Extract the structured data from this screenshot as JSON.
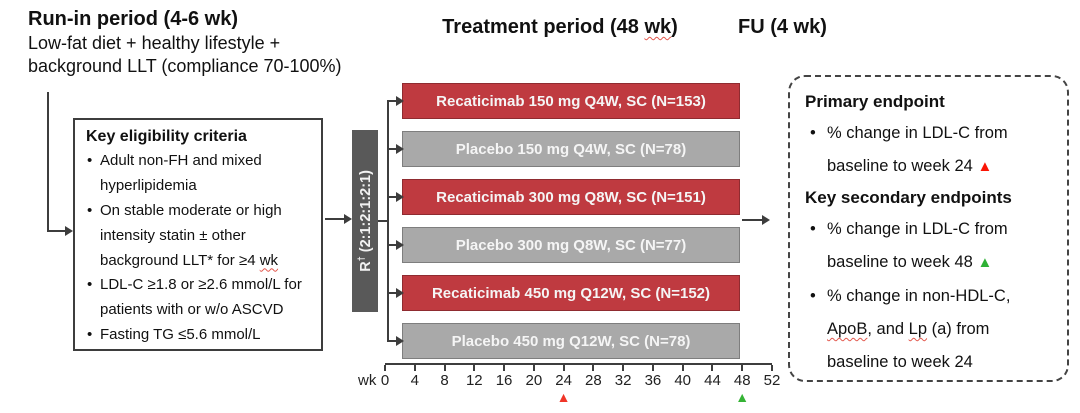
{
  "colors": {
    "treatment_bar": "#bf3a40",
    "placebo_bar": "#a9a9a9",
    "randomization_bar": "#595959",
    "marker_red": "#f03528",
    "marker_green": "#35b335",
    "connector": "#3d3d3d"
  },
  "headers": {
    "run_in_title": "Run-in period (4-6 wk)",
    "run_in_line1": "Low-fat diet + healthy lifestyle +",
    "run_in_line2": "background LLT (compliance 70-100%)",
    "treatment_pre": "Treatment period (48 ",
    "treatment_sq": "wk",
    "treatment_post": ")",
    "fu": "FU (4 wk)"
  },
  "eligibility": {
    "title": "Key eligibility criteria",
    "items": [
      {
        "text": "Adult non-FH and mixed hyperlipidemia"
      },
      {
        "pre": "On stable moderate or high intensity statin ± other background LLT* for ≥4 ",
        "sq": "wk"
      },
      {
        "text": "LDL-C ≥1.8 or ≥2.6 mmol/L for patients with or w/o ASCVD"
      },
      {
        "text": "Fasting TG ≤5.6 mmol/L"
      }
    ]
  },
  "randomization": {
    "r": "R",
    "sup": "†",
    "ratio": " (2:1:2:1:2:1)"
  },
  "arms": [
    {
      "label": "Recaticimab 150 mg Q4W, SC (N=153)",
      "type": "treatment"
    },
    {
      "label": "Placebo 150 mg Q4W, SC (N=78)",
      "type": "placebo"
    },
    {
      "label": "Recaticimab 300 mg Q8W, SC (N=151)",
      "type": "treatment"
    },
    {
      "label": "Placebo 300 mg Q8W, SC (N=77)",
      "type": "placebo"
    },
    {
      "label": "Recaticimab 450 mg Q12W, SC (N=152)",
      "type": "treatment"
    },
    {
      "label": "Placebo 450 mg Q12W, SC (N=78)",
      "type": "placebo"
    }
  ],
  "axis": {
    "unit_label": "wk",
    "ticks": [
      "0",
      "4",
      "8",
      "12",
      "16",
      "20",
      "24",
      "28",
      "32",
      "36",
      "40",
      "44",
      "48",
      "52"
    ],
    "markers": [
      {
        "week": 24,
        "symbol": "▲",
        "color": "#f03528"
      },
      {
        "week": 48,
        "symbol": "▲",
        "color": "#35b335"
      }
    ]
  },
  "endpoints": {
    "primary_title": "Primary endpoint",
    "primary_bullet_text": "% change in LDL-C from baseline to week 24 ",
    "primary_marker": "▲",
    "secondary_title": "Key secondary endpoints",
    "secondary_bullet1_text": "% change in LDL-C from baseline to week 48 ",
    "secondary_marker": "▲",
    "secondary_bullet2": {
      "seg1": "% change in non-HDL-C, ",
      "sq1": "ApoB",
      "seg2": ", and ",
      "sq2": "Lp",
      "seg3": " (a) from baseline to week 24"
    }
  }
}
